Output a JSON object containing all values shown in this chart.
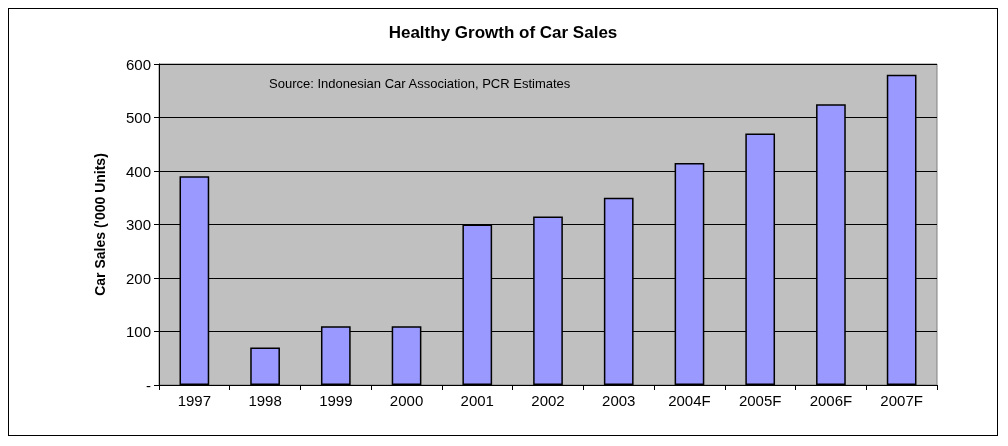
{
  "chart_data": {
    "type": "bar",
    "title": "Healthy Growth of Car Sales",
    "ylabel": "Car Sales ('000 Units)",
    "annotations": [
      "Source: Indonesian Car Association, PCR Estimates"
    ],
    "categories": [
      "1997",
      "1998",
      "1999",
      "2000",
      "2001",
      "2002",
      "2003",
      "2004F",
      "2005F",
      "2006F",
      "2007F"
    ],
    "values": [
      390,
      70,
      110,
      110,
      300,
      315,
      350,
      415,
      470,
      525,
      580
    ],
    "color": "#9999ff",
    "ylim": [
      0,
      600
    ],
    "yticks": [
      {
        "value": 0,
        "label": "-"
      },
      100,
      200,
      300,
      400,
      500,
      600
    ],
    "grid": "y"
  }
}
